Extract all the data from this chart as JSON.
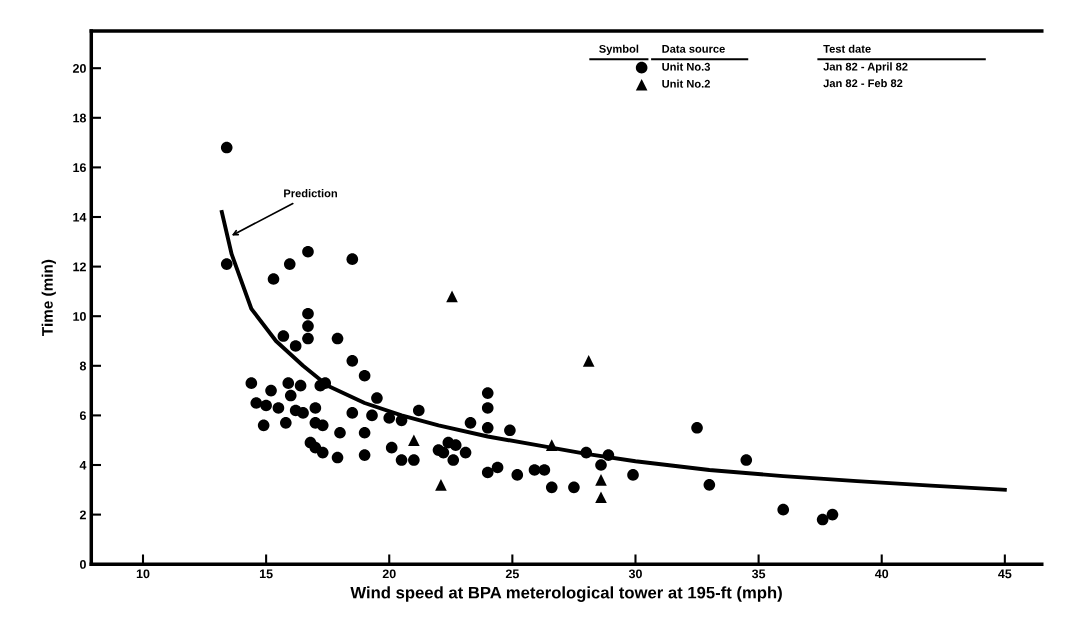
{
  "chart_data": {
    "type": "scatter",
    "xlabel": "Wind speed at BPA meterological tower at 195-ft (mph)",
    "ylabel": "Time (min)",
    "xlim": [
      7.9,
      46.5
    ],
    "ylim": [
      0,
      21.5
    ],
    "xticks": [
      10,
      15,
      20,
      25,
      30,
      35,
      40,
      45
    ],
    "yticks": [
      0,
      2,
      4,
      6,
      8,
      10,
      12,
      14,
      16,
      18,
      20
    ],
    "grid": false,
    "legend": "top right",
    "annotations": [
      "Symbol",
      "Data source",
      "Test date",
      "Jan 82 - April 82",
      "Jan 82 - Feb 82",
      {
        "text": "Prediction",
        "x": 13.5,
        "y": 13.2
      }
    ],
    "series": [
      {
        "name": "Unit No.3",
        "color": "#000000",
        "marker": "circle",
        "x": [
          13.4,
          13.4,
          15.96,
          16.7,
          18.5,
          15.3,
          16.7,
          16.7,
          16.7,
          15.7,
          16.2,
          17.9,
          18.5,
          19.0,
          14.4,
          15.2,
          15.9,
          16.4,
          17.2,
          17.4,
          16.0,
          14.6,
          15.0,
          15.5,
          16.2,
          16.5,
          17.0,
          18.5,
          19.5,
          19.3,
          20.0,
          20.5,
          21.2,
          23.3,
          14.9,
          15.8,
          17.0,
          17.3,
          18.0,
          19.0,
          16.8,
          17.0,
          17.3,
          17.9,
          19.0,
          20.1,
          20.5,
          21.0,
          22.0,
          22.4,
          22.7,
          23.1,
          22.6,
          22.2,
          24.0,
          24.0,
          24.0,
          24.9,
          28.0,
          28.9,
          28.6,
          24.0,
          24.4,
          25.2,
          25.9,
          26.3,
          26.6,
          27.5,
          29.9,
          32.5,
          34.5,
          33.0,
          36.0,
          37.6,
          38.0
        ],
        "values": [
          16.8,
          12.1,
          12.1,
          12.6,
          12.3,
          11.5,
          10.1,
          9.6,
          9.1,
          9.2,
          8.8,
          9.1,
          8.2,
          7.6,
          7.3,
          7.0,
          7.3,
          7.2,
          7.2,
          7.3,
          6.8,
          6.5,
          6.4,
          6.3,
          6.2,
          6.1,
          6.3,
          6.1,
          6.7,
          6.0,
          5.9,
          5.8,
          6.2,
          5.7,
          5.6,
          5.7,
          5.7,
          5.6,
          5.3,
          5.3,
          4.9,
          4.7,
          4.5,
          4.3,
          4.4,
          4.7,
          4.2,
          4.2,
          4.6,
          4.9,
          4.8,
          4.5,
          4.2,
          4.5,
          6.9,
          6.3,
          5.5,
          5.4,
          4.5,
          4.4,
          4.0,
          3.7,
          3.9,
          3.6,
          3.8,
          3.8,
          3.1,
          3.1,
          3.6,
          5.5,
          4.2,
          3.2,
          2.2,
          1.8,
          2.0
        ]
      },
      {
        "name": "Unit No.2",
        "color": "#000000",
        "marker": "triangle",
        "x": [
          22.55,
          28.1,
          21.0,
          22.1,
          26.6,
          28.6,
          28.6
        ],
        "values": [
          10.8,
          8.2,
          5.0,
          3.2,
          4.8,
          3.4,
          2.7
        ]
      },
      {
        "type": "line",
        "color": "#000000",
        "marker": "none",
        "x": [
          13.2,
          13.6,
          14.4,
          15.4,
          16.5,
          17.5,
          19,
          20.5,
          22,
          24,
          26,
          28,
          30,
          33,
          36,
          39,
          42,
          45
        ],
        "values": [
          14.2,
          12.5,
          10.3,
          9.0,
          8.0,
          7.2,
          6.5,
          6.0,
          5.6,
          5.15,
          4.8,
          4.45,
          4.15,
          3.8,
          3.55,
          3.35,
          3.17,
          3.0
        ]
      }
    ]
  }
}
